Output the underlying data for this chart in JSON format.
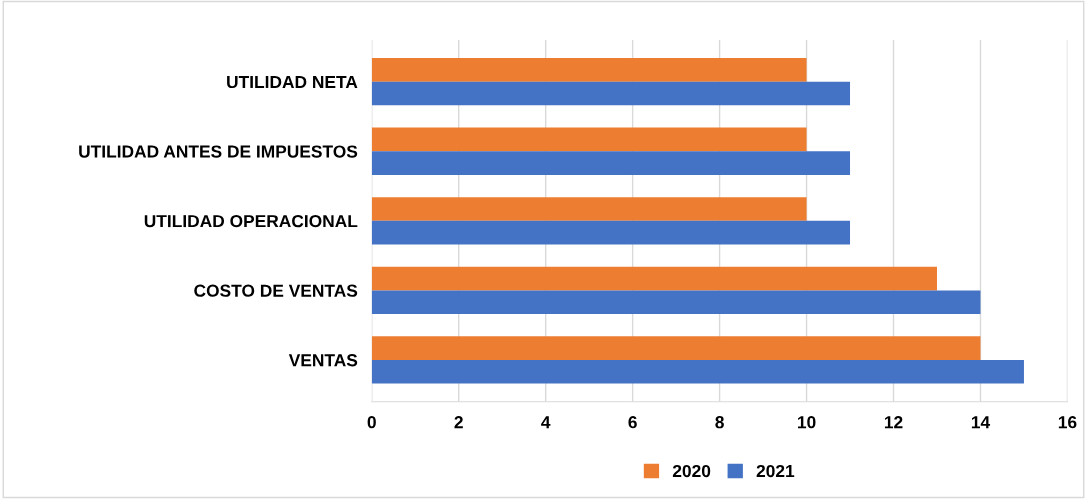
{
  "chart_data": {
    "type": "bar",
    "orientation": "horizontal",
    "categories": [
      "UTILIDAD NETA",
      "UTILIDAD ANTES DE IMPUESTOS",
      "UTILIDAD OPERACIONAL",
      "COSTO DE VENTAS",
      "VENTAS"
    ],
    "series": [
      {
        "name": "2020",
        "color": "#ed7d31",
        "values": [
          10,
          10,
          10,
          13,
          14
        ]
      },
      {
        "name": "2021",
        "color": "#4472c4",
        "values": [
          11,
          11,
          11,
          14,
          15
        ]
      }
    ],
    "xlim": [
      0,
      16
    ],
    "xticks": [
      0,
      2,
      4,
      6,
      8,
      10,
      12,
      14,
      16
    ],
    "grid": "x",
    "legend": "bottom"
  }
}
